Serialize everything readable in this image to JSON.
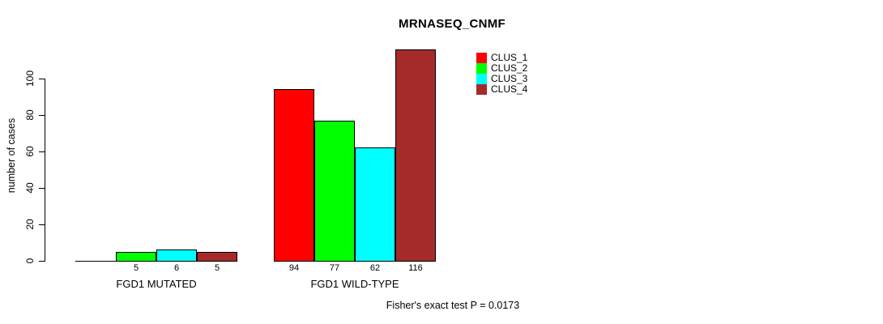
{
  "chart_data": {
    "type": "bar",
    "title": "MRNASEQ_CNMF",
    "xlabel": "",
    "ylabel": "number of cases",
    "groups": [
      "FGD1 MUTATED",
      "FGD1 WILD-TYPE"
    ],
    "series": [
      {
        "name": "CLUS_1",
        "color": "#ff0000",
        "values": [
          0,
          94
        ]
      },
      {
        "name": "CLUS_2",
        "color": "#00ff00",
        "values": [
          5,
          77
        ]
      },
      {
        "name": "CLUS_3",
        "color": "#00ffff",
        "values": [
          6,
          62
        ]
      },
      {
        "name": "CLUS_4",
        "color": "#a52a2a",
        "values": [
          5,
          116
        ]
      }
    ],
    "bar_value_labels": [
      [
        "",
        "5",
        "6",
        "5"
      ],
      [
        "94",
        "77",
        "62",
        "116"
      ]
    ],
    "yticks": [
      0,
      20,
      40,
      60,
      80,
      100
    ],
    "ylim": [
      0,
      116
    ],
    "grid": false,
    "legend_position": "top-right",
    "annotation": "Fisher's exact test P = 0.0173"
  }
}
